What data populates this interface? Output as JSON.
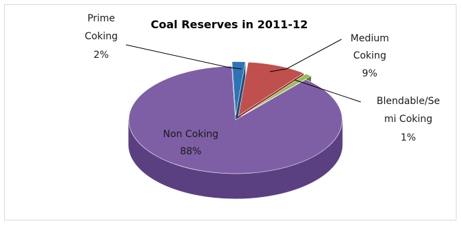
{
  "chart_data": {
    "type": "pie",
    "title": "Coal Reserves in 2011-12",
    "three_d": true,
    "slices": [
      {
        "label": "Prime Coking",
        "label_lines": [
          "Prime",
          "Coking"
        ],
        "value": 2,
        "value_text": "2%",
        "color": "#2E74B5",
        "side_color": "#1F4E79",
        "exploded": true
      },
      {
        "label": "Medium Coking",
        "label_lines": [
          "Medium",
          "Coking"
        ],
        "value": 9,
        "value_text": "9%",
        "color": "#C0504D",
        "side_color": "#8B2A27",
        "exploded": true
      },
      {
        "label": "Blendable/Semi Coking",
        "label_lines": [
          "Blendable/Se",
          "mi Coking"
        ],
        "value": 1,
        "value_text": "1%",
        "color": "#9BBB59",
        "side_color": "#5E7A2A",
        "exploded": true
      },
      {
        "label": "Non Coking",
        "label_lines": [
          "Non Coking"
        ],
        "value": 88,
        "value_text": "88%",
        "color": "#7E5FA5",
        "side_color": "#5B4081",
        "exploded": false
      }
    ]
  }
}
